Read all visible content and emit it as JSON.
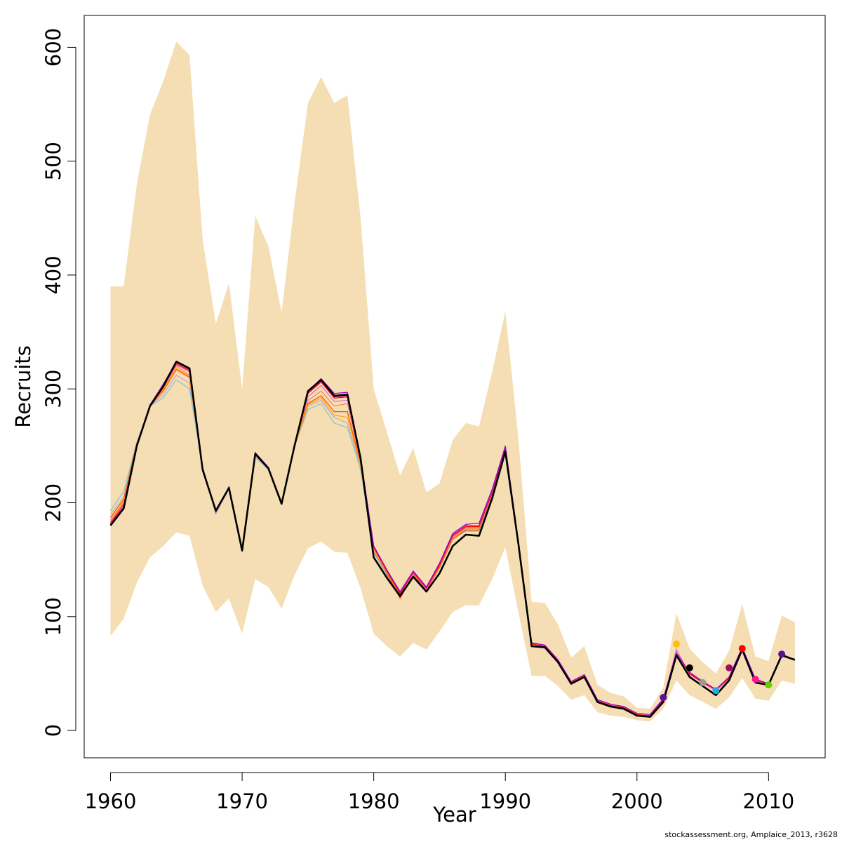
{
  "chart_data": {
    "type": "line",
    "title": "",
    "xlabel": "Year",
    "ylabel": "Recruits",
    "xlim": [
      1958,
      2014.3
    ],
    "ylim": [
      -24,
      628
    ],
    "x_ticks": [
      1960,
      1970,
      1980,
      1990,
      2000,
      2010
    ],
    "y_ticks": [
      0,
      100,
      200,
      300,
      400,
      500,
      600
    ],
    "grid": false,
    "legend": "none",
    "colors": {
      "band": "#f5deb3",
      "main_line": "#000000",
      "retro_lines": [
        "#7ec8c8",
        "#c8a0c8",
        "#ff7f50",
        "#ff4500",
        "#ffa500",
        "#da70d6",
        "#ff0000",
        "#c71585",
        "#9400d3"
      ]
    },
    "years": [
      1960,
      1961,
      1962,
      1963,
      1964,
      1965,
      1966,
      1967,
      1968,
      1969,
      1970,
      1971,
      1972,
      1973,
      1974,
      1975,
      1976,
      1977,
      1978,
      1979,
      1980,
      1981,
      1982,
      1983,
      1984,
      1985,
      1986,
      1987,
      1988,
      1989,
      1990,
      1991,
      1992,
      1993,
      1994,
      1995,
      1996,
      1997,
      1998,
      1999,
      2000,
      2001,
      2002,
      2003,
      2004,
      2005,
      2006,
      2007,
      2008,
      2009,
      2010,
      2011,
      2012
    ],
    "upper": [
      390,
      390,
      480,
      541,
      570,
      605,
      593,
      431,
      357,
      393,
      300,
      452,
      425,
      367,
      465,
      551,
      574,
      551,
      558,
      450,
      300,
      262,
      224,
      248,
      209,
      217,
      255,
      270,
      267,
      315,
      368,
      255,
      113,
      112,
      93,
      64,
      74,
      40,
      33,
      30,
      20,
      19,
      38,
      103,
      72,
      60,
      50,
      70,
      111,
      65,
      61,
      101,
      95
    ],
    "lower": [
      83,
      98,
      130,
      152,
      162,
      174,
      171,
      127,
      104,
      116,
      85,
      133,
      126,
      107,
      137,
      160,
      166,
      157,
      156,
      125,
      85,
      74,
      65,
      77,
      71,
      87,
      104,
      110,
      110,
      133,
      161,
      103,
      48,
      48,
      39,
      27,
      31,
      16,
      13,
      12,
      9,
      8,
      19,
      44,
      31,
      25,
      19,
      29,
      46,
      28,
      26,
      44,
      41
    ],
    "series": [
      {
        "name": "",
        "values": [
          180,
          195,
          250,
          285,
          302,
          324,
          318,
          229,
          193,
          213,
          158,
          243,
          230,
          199,
          251,
          298,
          308,
          294,
          295,
          239,
          152,
          134,
          118,
          135,
          122,
          138,
          162,
          172,
          171,
          204,
          245,
          163,
          74,
          73,
          60,
          41,
          47,
          25,
          21,
          19,
          13,
          12,
          25,
          66,
          47,
          39,
          31,
          44,
          71,
          42,
          40,
          66,
          62
        ]
      },
      {
        "name": "",
        "values": [
          193,
          210,
          253,
          285,
          292,
          308,
          300,
          230,
          191,
          213,
          160,
          240,
          229,
          201,
          250,
          282,
          287,
          270,
          266,
          229,
          156,
          136,
          119,
          139,
          124,
          143,
          168,
          175,
          175,
          207,
          244,
          162,
          76,
          73,
          60,
          42,
          47,
          25,
          21,
          19,
          13,
          12,
          26,
          71,
          49,
          42,
          35,
          45,
          72,
          43,
          40,
          66,
          62
        ]
      },
      {
        "name": "",
        "values": [
          190,
          205,
          252,
          285,
          295,
          312,
          305,
          230,
          190,
          212,
          160,
          241,
          230,
          200,
          250,
          285,
          290,
          275,
          270,
          232,
          157,
          138,
          120,
          140,
          125,
          145,
          170,
          177,
          177,
          208,
          246,
          163,
          76,
          73,
          60,
          42,
          47,
          25,
          21,
          19,
          13,
          12,
          26,
          71,
          49,
          42,
          35,
          45,
          72,
          43,
          40,
          66,
          62
        ]
      },
      {
        "name": "",
        "values": [
          184,
          200,
          251,
          285,
          300,
          320,
          312,
          230,
          193,
          213,
          159,
          243,
          231,
          201,
          250,
          290,
          298,
          285,
          287,
          236,
          158,
          140,
          118,
          139,
          125,
          145,
          170,
          178,
          178,
          208,
          246,
          163,
          76,
          73,
          60,
          42,
          47,
          25,
          21,
          19,
          13,
          12,
          26,
          71,
          49,
          42,
          35,
          45,
          72,
          43,
          40,
          66,
          62
        ]
      },
      {
        "name": "",
        "values": [
          187,
          203,
          252,
          285,
          298,
          317,
          310,
          230,
          192,
          213,
          159,
          242,
          230,
          200,
          250,
          287,
          294,
          280,
          280,
          234,
          158,
          138,
          116,
          137,
          123,
          143,
          168,
          176,
          176,
          207,
          245,
          162,
          76,
          73,
          60,
          42,
          47,
          25,
          21,
          19,
          13,
          12,
          26,
          71,
          49,
          42,
          35,
          45,
          72,
          43,
          40,
          66,
          62
        ]
      },
      {
        "name": "",
        "values": [
          185,
          201,
          251,
          285,
          299,
          318,
          311,
          230,
          192,
          213,
          159,
          242,
          230,
          200,
          250,
          286,
          292,
          277,
          275,
          233,
          158,
          139,
          119,
          138,
          124,
          144,
          169,
          177,
          177,
          207,
          245,
          162,
          76,
          73,
          60,
          42,
          47,
          25,
          21,
          19,
          13,
          12,
          26,
          71,
          49,
          42,
          35,
          45,
          72,
          43,
          40,
          66,
          62
        ]
      },
      {
        "name": "",
        "values": [
          183,
          199,
          251,
          285,
          301,
          321,
          315,
          231,
          192,
          213,
          159,
          243,
          231,
          200,
          251,
          293,
          303,
          289,
          290,
          237,
          160,
          140,
          120,
          138,
          124,
          145,
          170,
          178,
          178,
          208,
          246,
          163,
          76,
          73,
          60,
          42,
          47,
          25,
          21,
          19,
          13,
          12,
          26,
          71,
          49,
          42,
          35,
          45,
          72,
          43,
          40,
          66,
          62
        ]
      },
      {
        "name": "",
        "values": [
          182,
          198,
          251,
          286,
          302,
          322,
          316,
          231,
          192,
          213,
          159,
          243,
          231,
          200,
          251,
          296,
          306,
          292,
          293,
          238,
          161,
          140,
          120,
          139,
          125,
          145,
          171,
          179,
          179,
          209,
          247,
          164,
          76,
          74,
          61,
          42,
          48,
          26,
          22,
          20,
          14,
          13,
          27,
          68,
          50,
          42,
          36,
          46,
          72,
          44,
          41,
          66,
          62
        ]
      },
      {
        "name": "",
        "values": [
          181,
          196,
          250,
          286,
          303,
          323,
          317,
          230,
          192,
          214,
          159,
          244,
          231,
          200,
          251,
          297,
          307,
          293,
          294,
          239,
          162,
          141,
          121,
          140,
          126,
          146,
          172,
          180,
          180,
          210,
          248,
          165,
          77,
          75,
          62,
          43,
          49,
          27,
          23,
          21,
          15,
          14,
          27,
          68,
          51,
          43,
          36,
          47,
          73,
          45,
          41,
          67,
          62
        ]
      },
      {
        "name": "",
        "values": [
          181,
          196,
          250,
          286,
          304,
          324,
          318,
          231,
          192,
          214,
          159,
          244,
          231,
          200,
          251,
          298,
          309,
          296,
          297,
          240,
          162,
          141,
          122,
          140,
          126,
          147,
          173,
          181,
          182,
          212,
          250,
          165,
          77,
          75,
          62,
          43,
          49,
          27,
          23,
          21,
          15,
          14,
          28,
          68,
          51,
          43,
          36,
          47,
          73,
          45,
          41,
          67,
          62
        ]
      }
    ],
    "terminal_points": [
      {
        "x": 2002,
        "y": 29,
        "color": "#5b0f91"
      },
      {
        "x": 2003,
        "y": 76,
        "color": "#ffc000"
      },
      {
        "x": 2004,
        "y": 55,
        "color": "#000000"
      },
      {
        "x": 2005,
        "y": 42,
        "color": "#9b9b9b"
      },
      {
        "x": 2006,
        "y": 35,
        "color": "#29a8e0"
      },
      {
        "x": 2007,
        "y": 55,
        "color": "#9b1060"
      },
      {
        "x": 2008,
        "y": 72,
        "color": "#ff0000"
      },
      {
        "x": 2009,
        "y": 45,
        "color": "#ff1493"
      },
      {
        "x": 2010,
        "y": 40,
        "color": "#66cc00"
      },
      {
        "x": 2011,
        "y": 67,
        "color": "#5b0f91"
      }
    ]
  },
  "caption": "stockassessment.org, Amplaice_2013, r3628"
}
